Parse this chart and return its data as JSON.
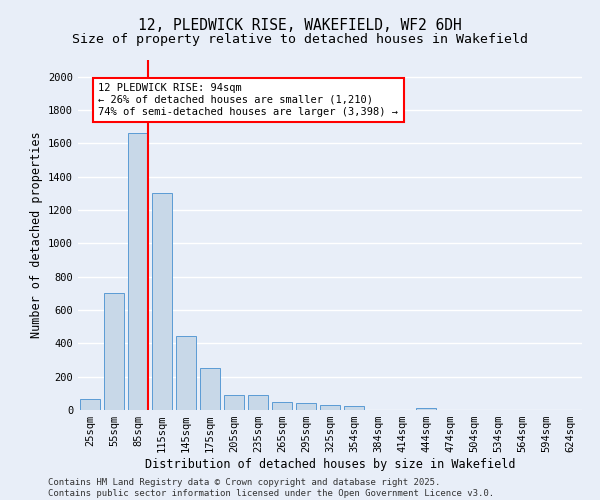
{
  "title1": "12, PLEDWICK RISE, WAKEFIELD, WF2 6DH",
  "title2": "Size of property relative to detached houses in Wakefield",
  "xlabel": "Distribution of detached houses by size in Wakefield",
  "ylabel": "Number of detached properties",
  "categories": [
    "25sqm",
    "55sqm",
    "85sqm",
    "115sqm",
    "145sqm",
    "175sqm",
    "205sqm",
    "235sqm",
    "265sqm",
    "295sqm",
    "325sqm",
    "354sqm",
    "384sqm",
    "414sqm",
    "444sqm",
    "474sqm",
    "504sqm",
    "534sqm",
    "564sqm",
    "594sqm",
    "624sqm"
  ],
  "values": [
    65,
    700,
    1660,
    1305,
    445,
    255,
    90,
    90,
    50,
    40,
    28,
    25,
    0,
    0,
    15,
    0,
    0,
    0,
    0,
    0,
    0
  ],
  "bar_color": "#c8d8e8",
  "bar_edge_color": "#5b9bd5",
  "vline_color": "red",
  "annotation_text": "12 PLEDWICK RISE: 94sqm\n← 26% of detached houses are smaller (1,210)\n74% of semi-detached houses are larger (3,398) →",
  "annotation_box_color": "white",
  "annotation_box_edge_color": "red",
  "ylim": [
    0,
    2100
  ],
  "yticks": [
    0,
    200,
    400,
    600,
    800,
    1000,
    1200,
    1400,
    1600,
    1800,
    2000
  ],
  "bg_color": "#e8eef8",
  "grid_color": "white",
  "footer1": "Contains HM Land Registry data © Crown copyright and database right 2025.",
  "footer2": "Contains public sector information licensed under the Open Government Licence v3.0.",
  "title_fontsize": 10.5,
  "subtitle_fontsize": 9.5,
  "axis_label_fontsize": 8.5,
  "tick_fontsize": 7.5,
  "annotation_fontsize": 7.5,
  "footer_fontsize": 6.5
}
